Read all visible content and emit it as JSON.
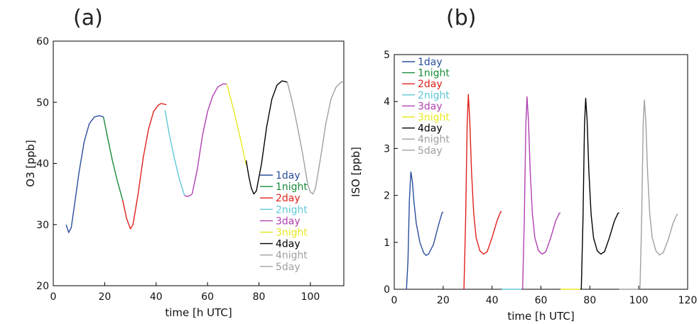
{
  "panels": [
    {
      "label": "(a)"
    },
    {
      "label": "(b)"
    }
  ],
  "chart_data": [
    {
      "type": "line",
      "panel": "(a)",
      "xlabel": "time [h UTC]",
      "ylabel": "O3 [ppb]",
      "xlim": [
        0,
        113
      ],
      "ylim": [
        20,
        60
      ],
      "xticks": [
        0,
        20,
        40,
        60,
        80,
        100
      ],
      "yticks": [
        20,
        30,
        40,
        50,
        60
      ],
      "legend_position": "lower-right",
      "series": [
        {
          "name": "1day",
          "color": "#2a4d9c",
          "points": [
            [
              5,
              30
            ],
            [
              6,
              28.7
            ],
            [
              7,
              29.5
            ],
            [
              8,
              32.5
            ],
            [
              10,
              38.5
            ],
            [
              12,
              43.5
            ],
            [
              14,
              46.5
            ],
            [
              16,
              47.6
            ],
            [
              18,
              47.8
            ],
            [
              19.5,
              47.6
            ]
          ]
        },
        {
          "name": "1night",
          "color": "#1a8a3a",
          "points": [
            [
              19.5,
              47.6
            ],
            [
              21,
              44.5
            ],
            [
              23,
              40.5
            ],
            [
              25,
              37
            ],
            [
              27,
              34
            ]
          ]
        },
        {
          "name": "2day",
          "color": "#e0201b",
          "points": [
            [
              27,
              34
            ],
            [
              28.5,
              31
            ],
            [
              30,
              29.3
            ],
            [
              31,
              30
            ],
            [
              33,
              35
            ],
            [
              35,
              41
            ],
            [
              37,
              45.5
            ],
            [
              39,
              48.5
            ],
            [
              41,
              49.6
            ],
            [
              42,
              49.8
            ],
            [
              44,
              49.6
            ]
          ]
        },
        {
          "name": "2night",
          "color": "#5ec8d8",
          "points": [
            [
              43.5,
              48.7
            ],
            [
              45,
              45
            ],
            [
              47,
              41
            ],
            [
              49,
              37.5
            ],
            [
              51,
              34.8
            ]
          ]
        },
        {
          "name": "3day",
          "color": "#b040b0",
          "points": [
            [
              51,
              34.8
            ],
            [
              52,
              34.6
            ],
            [
              53,
              34.7
            ],
            [
              54,
              35
            ],
            [
              56,
              39
            ],
            [
              58,
              44.5
            ],
            [
              60,
              48.5
            ],
            [
              62,
              51
            ],
            [
              64,
              52.5
            ],
            [
              66,
              53
            ],
            [
              67.5,
              53
            ]
          ]
        },
        {
          "name": "3night",
          "color": "#e8e820",
          "points": [
            [
              67.5,
              53
            ],
            [
              70,
              49
            ],
            [
              72,
              45.5
            ],
            [
              75,
              39.8
            ]
          ]
        },
        {
          "name": "4day",
          "color": "#000000",
          "points": [
            [
              75,
              40.5
            ],
            [
              76,
              38
            ],
            [
              77,
              36
            ],
            [
              78,
              35
            ],
            [
              79,
              35.5
            ],
            [
              81,
              40
            ],
            [
              83,
              46
            ],
            [
              85,
              50.5
            ],
            [
              87,
              52.8
            ],
            [
              89,
              53.5
            ],
            [
              91,
              53.3
            ]
          ]
        },
        {
          "name": "4night",
          "color": "#a0a0a0",
          "points": [
            [
              91,
              53.3
            ],
            [
              93,
              50
            ],
            [
              95,
              46
            ],
            [
              97,
              41.5
            ],
            [
              99,
              36.5
            ]
          ]
        },
        {
          "name": "5day",
          "color": "#a0a0a0",
          "points": [
            [
              99,
              36.5
            ],
            [
              100,
              35.3
            ],
            [
              101,
              35
            ],
            [
              102,
              36
            ],
            [
              104,
              41
            ],
            [
              106,
              46.5
            ],
            [
              108,
              50.5
            ],
            [
              110,
              52.5
            ],
            [
              112,
              53.3
            ],
            [
              113,
              53.4
            ]
          ]
        }
      ]
    },
    {
      "type": "line",
      "panel": "(b)",
      "xlabel": "time [h UTC]",
      "ylabel": "ISO [ppb]",
      "xlim": [
        0,
        120
      ],
      "ylim": [
        0,
        5
      ],
      "xticks": [
        0,
        20,
        40,
        60,
        80,
        100,
        120
      ],
      "yticks": [
        0,
        1,
        2,
        3,
        4,
        5
      ],
      "legend_position": "upper-left",
      "series": [
        {
          "name": "1day",
          "color": "#2a4d9c",
          "points": [
            [
              5,
              0
            ],
            [
              5.6,
              0.6
            ],
            [
              6.2,
              1.9
            ],
            [
              6.8,
              2.5
            ],
            [
              7.4,
              2.3
            ],
            [
              8,
              1.9
            ],
            [
              9,
              1.4
            ],
            [
              10.5,
              1
            ],
            [
              12,
              0.78
            ],
            [
              13,
              0.72
            ],
            [
              14,
              0.75
            ],
            [
              16,
              0.95
            ],
            [
              18,
              1.35
            ],
            [
              19.5,
              1.62
            ],
            [
              20,
              1.65
            ]
          ]
        },
        {
          "name": "1night",
          "color": "#1a8a3a",
          "points": []
        },
        {
          "name": "2day",
          "color": "#e0201b",
          "points": [
            [
              28.5,
              0
            ],
            [
              29.2,
              1.5
            ],
            [
              29.8,
              3.5
            ],
            [
              30.3,
              4.15
            ],
            [
              30.9,
              3.6
            ],
            [
              31.6,
              2.5
            ],
            [
              32.5,
              1.6
            ],
            [
              33.5,
              1.1
            ],
            [
              35,
              0.82
            ],
            [
              36.5,
              0.75
            ],
            [
              38,
              0.8
            ],
            [
              40,
              1.1
            ],
            [
              42,
              1.45
            ],
            [
              43.5,
              1.65
            ],
            [
              44,
              1.65
            ]
          ]
        },
        {
          "name": "2night",
          "color": "#5ec8d8",
          "points": [
            [
              44,
              0
            ],
            [
              52,
              0
            ]
          ]
        },
        {
          "name": "3day",
          "color": "#b040b0",
          "points": [
            [
              52.5,
              0
            ],
            [
              53.2,
              1.5
            ],
            [
              53.8,
              3.5
            ],
            [
              54.3,
              4.1
            ],
            [
              54.9,
              3.6
            ],
            [
              55.6,
              2.5
            ],
            [
              56.5,
              1.6
            ],
            [
              57.5,
              1.1
            ],
            [
              59,
              0.82
            ],
            [
              60.5,
              0.75
            ],
            [
              62,
              0.8
            ],
            [
              64,
              1.1
            ],
            [
              66,
              1.45
            ],
            [
              67.5,
              1.62
            ],
            [
              68,
              1.63
            ]
          ]
        },
        {
          "name": "3night",
          "color": "#e8e820",
          "points": [
            [
              68,
              0
            ],
            [
              76,
              0
            ]
          ]
        },
        {
          "name": "4day",
          "color": "#000000",
          "points": [
            [
              76.5,
              0
            ],
            [
              77.2,
              1.5
            ],
            [
              77.8,
              3.5
            ],
            [
              78.3,
              4.07
            ],
            [
              78.9,
              3.6
            ],
            [
              79.6,
              2.5
            ],
            [
              80.5,
              1.6
            ],
            [
              81.5,
              1.1
            ],
            [
              83,
              0.82
            ],
            [
              84.5,
              0.75
            ],
            [
              86,
              0.8
            ],
            [
              88,
              1.1
            ],
            [
              90,
              1.45
            ],
            [
              91.5,
              1.62
            ],
            [
              92,
              1.63
            ]
          ]
        },
        {
          "name": "4night",
          "color": "#a0a0a0",
          "points": [
            [
              92,
              0
            ],
            [
              100,
              0
            ]
          ]
        },
        {
          "name": "5day",
          "color": "#a0a0a0",
          "points": [
            [
              100.5,
              0
            ],
            [
              101.2,
              1.5
            ],
            [
              101.8,
              3.5
            ],
            [
              102.3,
              4.03
            ],
            [
              102.9,
              3.6
            ],
            [
              103.6,
              2.5
            ],
            [
              104.5,
              1.6
            ],
            [
              105.5,
              1.1
            ],
            [
              107,
              0.82
            ],
            [
              108.5,
              0.73
            ],
            [
              110,
              0.78
            ],
            [
              112,
              1.05
            ],
            [
              114,
              1.4
            ],
            [
              115.5,
              1.58
            ],
            [
              116,
              1.6
            ]
          ]
        }
      ]
    }
  ]
}
